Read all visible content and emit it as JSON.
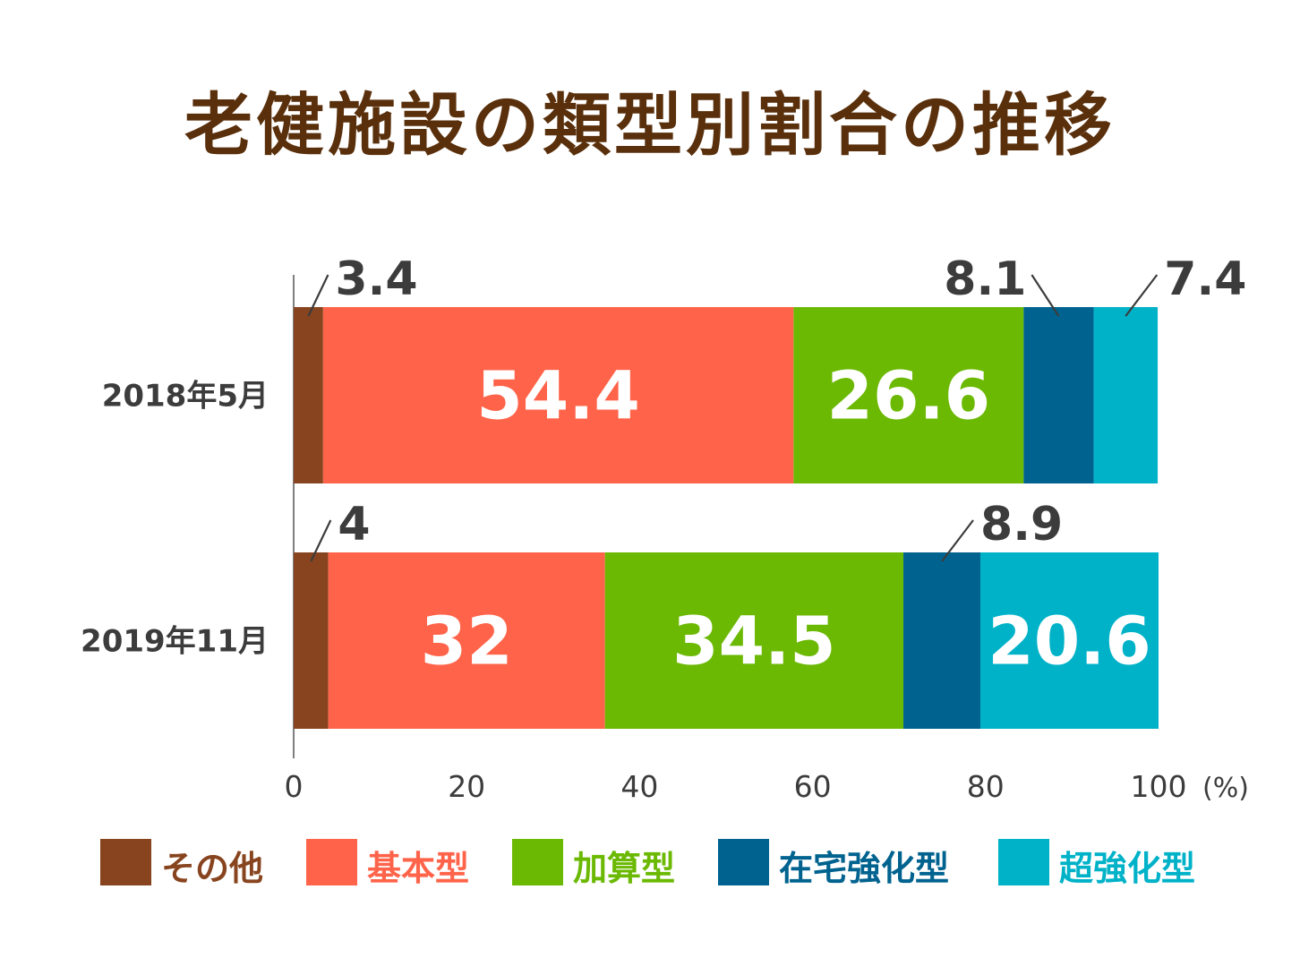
{
  "title": "老健施設の類型別割合の推移",
  "chart_data": {
    "type": "bar",
    "orientation": "horizontal",
    "stacked": true,
    "categories": [
      "2018年5月",
      "2019年11月"
    ],
    "series": [
      {
        "name": "その他",
        "color": "#87441f",
        "values": [
          3.4,
          4
        ]
      },
      {
        "name": "基本型",
        "color": "#ff644a",
        "values": [
          54.4,
          32
        ]
      },
      {
        "name": "加算型",
        "color": "#6bb903",
        "values": [
          26.6,
          34.5
        ]
      },
      {
        "name": "在宅強化型",
        "color": "#00638f",
        "values": [
          8.1,
          8.9
        ]
      },
      {
        "name": "超強化型",
        "color": "#00b2c8",
        "values": [
          7.4,
          20.6
        ]
      }
    ],
    "data_labels": [
      [
        "3.4",
        "54.4",
        "26.6",
        "8.1",
        "7.4"
      ],
      [
        "4",
        "32",
        "34.5",
        "8.9",
        "20.6"
      ]
    ],
    "xlim": [
      0,
      100
    ],
    "xticks": [
      "0",
      "20",
      "40",
      "60",
      "80",
      "100"
    ],
    "xunit": "(%)",
    "legend_position": "bottom"
  },
  "legend": [
    {
      "label": "その他",
      "color": "#87441f"
    },
    {
      "label": "基本型",
      "color": "#ff644a"
    },
    {
      "label": "加算型",
      "color": "#6bb903"
    },
    {
      "label": "在宅強化型",
      "color": "#00638f"
    },
    {
      "label": "超強化型",
      "color": "#00b2c8"
    }
  ]
}
